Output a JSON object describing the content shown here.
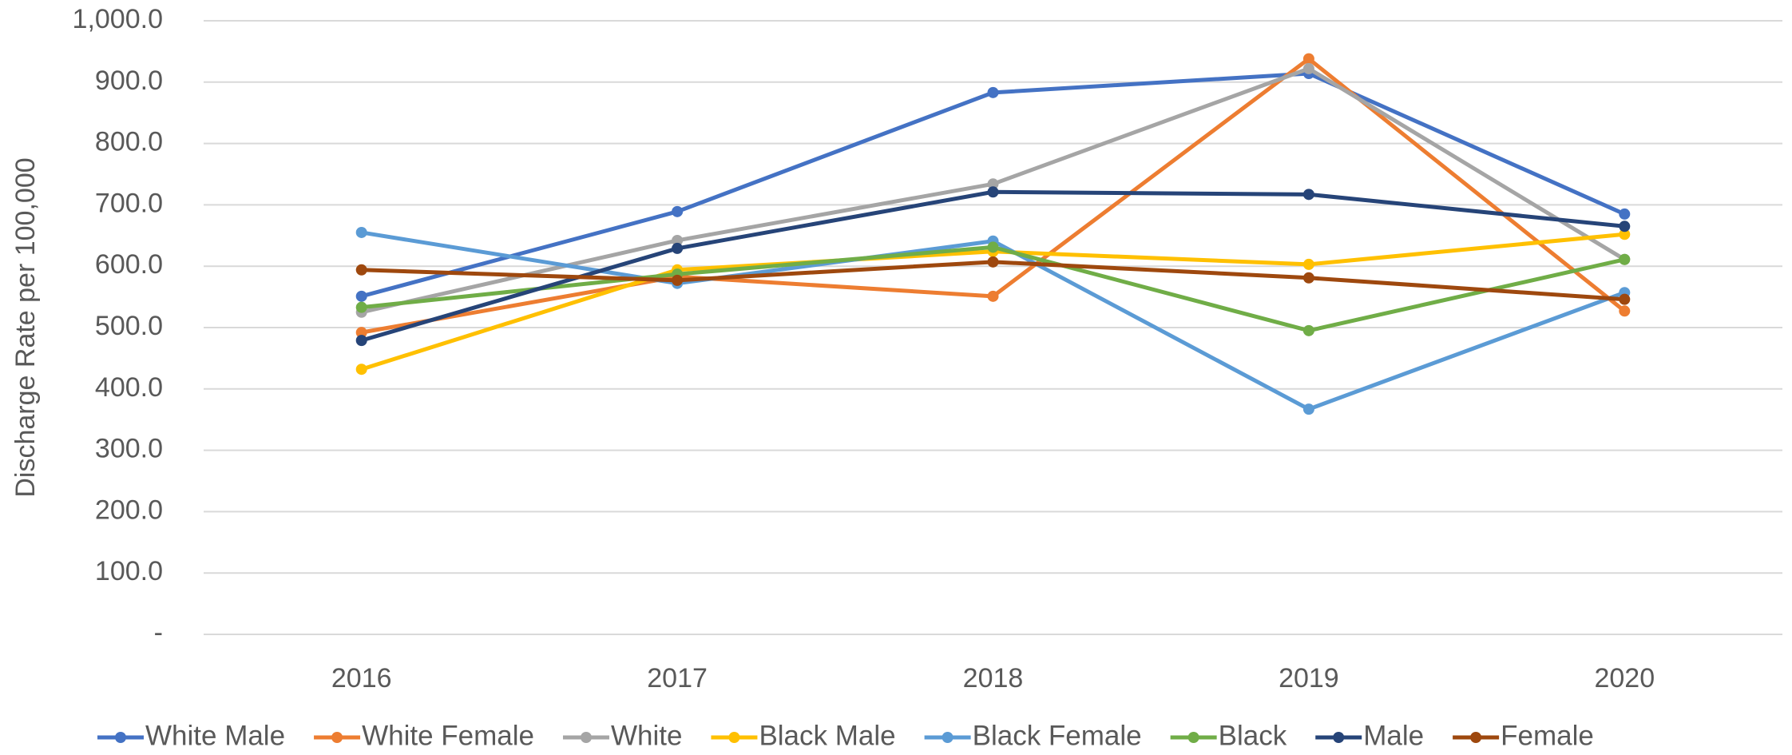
{
  "chart_data": {
    "type": "line",
    "y_label": "Discharge Rate per 100,000",
    "categories": [
      "2016",
      "2017",
      "2018",
      "2019",
      "2020"
    ],
    "series": [
      {
        "name": "White Male",
        "color": "#4472c4",
        "values": [
          551,
          689,
          883,
          914,
          685
        ]
      },
      {
        "name": "White Female",
        "color": "#ed7d31",
        "values": [
          492,
          583,
          551,
          938,
          527
        ]
      },
      {
        "name": "White",
        "color": "#a5a5a5",
        "values": [
          525,
          642,
          734,
          922,
          611
        ]
      },
      {
        "name": "Black Male",
        "color": "#ffc000",
        "values": [
          432,
          594,
          624,
          603,
          652
        ]
      },
      {
        "name": "Black Female",
        "color": "#5b9bd5",
        "values": [
          655,
          572,
          641,
          367,
          557
        ]
      },
      {
        "name": "Black",
        "color": "#70ad47",
        "values": [
          533,
          587,
          631,
          495,
          611
        ]
      },
      {
        "name": "Male",
        "color": "#264478",
        "values": [
          479,
          629,
          721,
          717,
          665
        ]
      },
      {
        "name": "Female",
        "color": "#9e480e",
        "values": [
          594,
          577,
          607,
          581,
          546
        ]
      }
    ],
    "ylim": [
      0,
      1000
    ],
    "yticks": [
      {
        "value": 0,
        "label": "-"
      },
      {
        "value": 100,
        "label": "100.0"
      },
      {
        "value": 200,
        "label": "200.0"
      },
      {
        "value": 300,
        "label": "300.0"
      },
      {
        "value": 400,
        "label": "400.0"
      },
      {
        "value": 500,
        "label": "500.0"
      },
      {
        "value": 600,
        "label": "600.0"
      },
      {
        "value": 700,
        "label": "700.0"
      },
      {
        "value": 800,
        "label": "800.0"
      },
      {
        "value": 900,
        "label": "900.0"
      },
      {
        "value": 1000,
        "label": "1,000.0"
      }
    ],
    "grid": true,
    "legend": "bottom"
  }
}
